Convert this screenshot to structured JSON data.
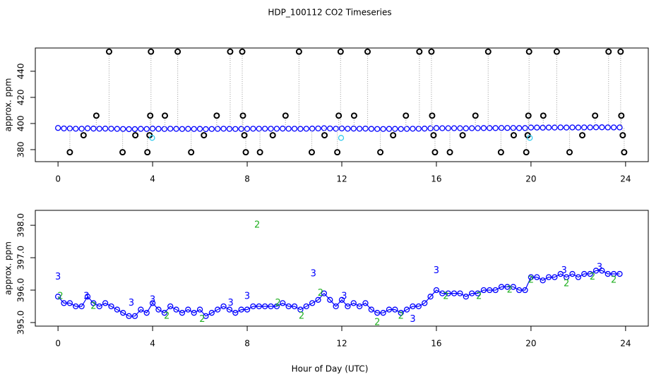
{
  "chart_data": [
    {
      "type": "scatter",
      "title": "HDP_100112  CO2 Timeseries",
      "ylabel": "approx. ppm",
      "xlim": [
        -0.96,
        24.96
      ],
      "xticks": [
        0,
        4,
        8,
        12,
        16,
        20,
        24
      ],
      "ylim": [
        370.8,
        457.8
      ],
      "yticks": [
        380,
        400,
        420,
        440
      ],
      "series": [
        {
          "color": "#0000ff",
          "marker": "circle",
          "x": [
            0,
            0.25,
            0.5,
            0.75,
            1,
            1.25,
            1.5,
            1.75,
            2,
            2.25,
            2.5,
            2.75,
            3,
            3.25,
            3.5,
            3.75,
            4,
            4.25,
            4.5,
            4.75,
            5,
            5.25,
            5.5,
            5.75,
            6,
            6.25,
            6.5,
            6.75,
            7,
            7.25,
            7.5,
            7.75,
            8,
            8.25,
            8.5,
            8.75,
            9,
            9.25,
            9.5,
            9.75,
            10,
            10.25,
            10.5,
            10.75,
            11,
            11.25,
            11.5,
            11.75,
            12,
            12.25,
            12.5,
            12.75,
            13,
            13.25,
            13.5,
            13.75,
            14,
            14.25,
            14.5,
            14.75,
            15,
            15.25,
            15.5,
            15.75,
            16,
            16.25,
            16.5,
            16.75,
            17,
            17.25,
            17.5,
            17.75,
            18,
            18.25,
            18.5,
            18.75,
            19,
            19.25,
            19.5,
            19.75,
            20,
            20.25,
            20.5,
            20.75,
            21,
            21.25,
            21.5,
            21.75,
            22,
            22.25,
            22.5,
            22.75,
            23,
            23.25,
            23.5,
            23.75
          ],
          "values": [
            396.6,
            396.2,
            396.2,
            396,
            396,
            396.3,
            396.1,
            396,
            396.1,
            396,
            395.9,
            395.8,
            395.7,
            395.7,
            395.9,
            395.8,
            396.1,
            395.9,
            395.8,
            396,
            395.9,
            395.8,
            395.9,
            395.8,
            395.9,
            395.7,
            395.8,
            395.9,
            396,
            395.9,
            395.8,
            395.9,
            395.9,
            396,
            396,
            396,
            396,
            396,
            396.1,
            396,
            396,
            395.9,
            396,
            396.1,
            396.2,
            396.4,
            396.2,
            396,
            396.2,
            396,
            396.1,
            396,
            396.1,
            395.9,
            395.8,
            395.8,
            395.9,
            395.9,
            395.8,
            395.9,
            396,
            396,
            396.1,
            396.3,
            396.5,
            396.4,
            396.4,
            396.4,
            396.4,
            396.3,
            396.4,
            396.4,
            396.5,
            396.5,
            396.5,
            396.6,
            396.6,
            396.6,
            396.5,
            396.5,
            396.9,
            396.9,
            396.8,
            396.9,
            396.9,
            397,
            396.9,
            397,
            396.9,
            397,
            397,
            397.1,
            397.1,
            397,
            397,
            397
          ]
        },
        {
          "color": "#000000",
          "marker": "circle",
          "drop_lines": true,
          "drop_color": "#aaaaaa",
          "x": [
            0.5,
            1.08,
            1.62,
            2.16,
            2.73,
            3.27,
            3.78,
            3.87,
            3.9,
            3.93,
            4.52,
            5.06,
            5.63,
            6.17,
            6.71,
            7.28,
            7.79,
            7.82,
            7.88,
            7.94,
            8.54,
            9.08,
            9.62,
            10.19,
            10.73,
            11.27,
            11.81,
            11.87,
            11.95,
            12.52,
            13.09,
            13.63,
            14.17,
            14.71,
            15.28,
            15.79,
            15.82,
            15.88,
            15.94,
            16.57,
            17.11,
            17.65,
            18.19,
            18.73,
            19.27,
            19.8,
            19.86,
            19.89,
            19.92,
            20.52,
            21.09,
            21.63,
            22.17,
            22.71,
            23.28,
            23.79,
            23.82,
            23.88,
            23.94
          ],
          "values": [
            378,
            391,
            406,
            455,
            378,
            391,
            378,
            391,
            406,
            455,
            406,
            455,
            378,
            391,
            406,
            455,
            455,
            406,
            391,
            378,
            378,
            391,
            406,
            455,
            378,
            391,
            378,
            406,
            455,
            406,
            455,
            378,
            391,
            406,
            455,
            455,
            406,
            391,
            378,
            378,
            391,
            406,
            455,
            378,
            391,
            378,
            391,
            406,
            455,
            406,
            455,
            378,
            391,
            406,
            455,
            455,
            406,
            391,
            378
          ]
        },
        {
          "color": "#33ccee",
          "marker": "circle",
          "x": [
            3.98,
            11.97,
            19.95
          ],
          "values": [
            389,
            389,
            389
          ]
        }
      ]
    },
    {
      "type": "scatter",
      "xlabel": "Hour of Day (UTC)",
      "ylabel": "approx. ppm",
      "xlim": [
        -0.96,
        24.96
      ],
      "xticks": [
        0,
        4,
        8,
        12,
        16,
        20,
        24
      ],
      "ylim": [
        394.89,
        398.46
      ],
      "yticks": [
        {
          "value": 395,
          "label": "395.0"
        },
        {
          "value": 396,
          "label": "396.0"
        },
        {
          "value": 397,
          "label": "397.0"
        },
        {
          "value": 398,
          "label": "398.0"
        }
      ],
      "series": [
        {
          "color": "#0000ff",
          "marker": "circle",
          "line": true,
          "x": [
            0,
            0.25,
            0.5,
            0.75,
            1,
            1.25,
            1.5,
            1.75,
            2,
            2.25,
            2.5,
            2.75,
            3,
            3.25,
            3.5,
            3.75,
            4,
            4.25,
            4.5,
            4.75,
            5,
            5.25,
            5.5,
            5.75,
            6,
            6.25,
            6.5,
            6.75,
            7,
            7.25,
            7.5,
            7.75,
            8,
            8.25,
            8.5,
            8.75,
            9,
            9.25,
            9.5,
            9.75,
            10,
            10.25,
            10.5,
            10.75,
            11,
            11.25,
            11.5,
            11.75,
            12,
            12.25,
            12.5,
            12.75,
            13,
            13.25,
            13.5,
            13.75,
            14,
            14.25,
            14.5,
            14.75,
            15,
            15.25,
            15.5,
            15.75,
            16,
            16.25,
            16.5,
            16.75,
            17,
            17.25,
            17.5,
            17.75,
            18,
            18.25,
            18.5,
            18.75,
            19,
            19.25,
            19.5,
            19.75,
            20,
            20.25,
            20.5,
            20.75,
            21,
            21.25,
            21.5,
            21.75,
            22,
            22.25,
            22.5,
            22.75,
            23,
            23.25,
            23.5,
            23.75
          ],
          "values": [
            395.8,
            395.6,
            395.6,
            395.5,
            395.5,
            395.8,
            395.6,
            395.5,
            395.6,
            395.5,
            395.4,
            395.3,
            395.2,
            395.2,
            395.4,
            395.3,
            395.6,
            395.4,
            395.3,
            395.5,
            395.4,
            395.3,
            395.4,
            395.3,
            395.4,
            395.2,
            395.3,
            395.4,
            395.5,
            395.4,
            395.3,
            395.4,
            395.4,
            395.5,
            395.5,
            395.5,
            395.5,
            395.5,
            395.6,
            395.5,
            395.5,
            395.4,
            395.5,
            395.6,
            395.7,
            395.9,
            395.7,
            395.5,
            395.7,
            395.5,
            395.6,
            395.5,
            395.6,
            395.4,
            395.3,
            395.3,
            395.4,
            395.4,
            395.3,
            395.4,
            395.5,
            395.5,
            395.6,
            395.8,
            396,
            395.9,
            395.9,
            395.9,
            395.9,
            395.8,
            395.9,
            395.9,
            396,
            396,
            396,
            396.1,
            396.1,
            396.1,
            396,
            396,
            396.4,
            396.4,
            396.3,
            396.4,
            396.4,
            396.5,
            396.4,
            396.5,
            396.4,
            396.5,
            396.5,
            396.6,
            396.6,
            396.5,
            396.5,
            396.5
          ]
        },
        {
          "color": "#22b022",
          "marker": "2",
          "x": [
            0.1,
            1.5,
            4.6,
            6.1,
            8.42,
            9.3,
            10.3,
            11.1,
            13.5,
            14.5,
            16.4,
            17.8,
            19.1,
            20.0,
            21.5,
            22.6,
            23.5
          ],
          "values": [
            395.8,
            395.5,
            395.2,
            395.1,
            398.0,
            395.6,
            395.2,
            395.9,
            395.0,
            395.2,
            395.8,
            395.8,
            396.0,
            396.3,
            396.2,
            396.4,
            396.3
          ]
        },
        {
          "color": "#0000ff",
          "marker": "3",
          "x": [
            0.0,
            1.2,
            3.1,
            4.0,
            7.3,
            8.0,
            10.8,
            12.1,
            15.0,
            16.0,
            21.4,
            22.9
          ],
          "values": [
            396.4,
            395.8,
            395.6,
            395.7,
            395.6,
            395.8,
            396.5,
            395.8,
            395.1,
            396.6,
            396.6,
            396.7
          ]
        }
      ]
    }
  ]
}
